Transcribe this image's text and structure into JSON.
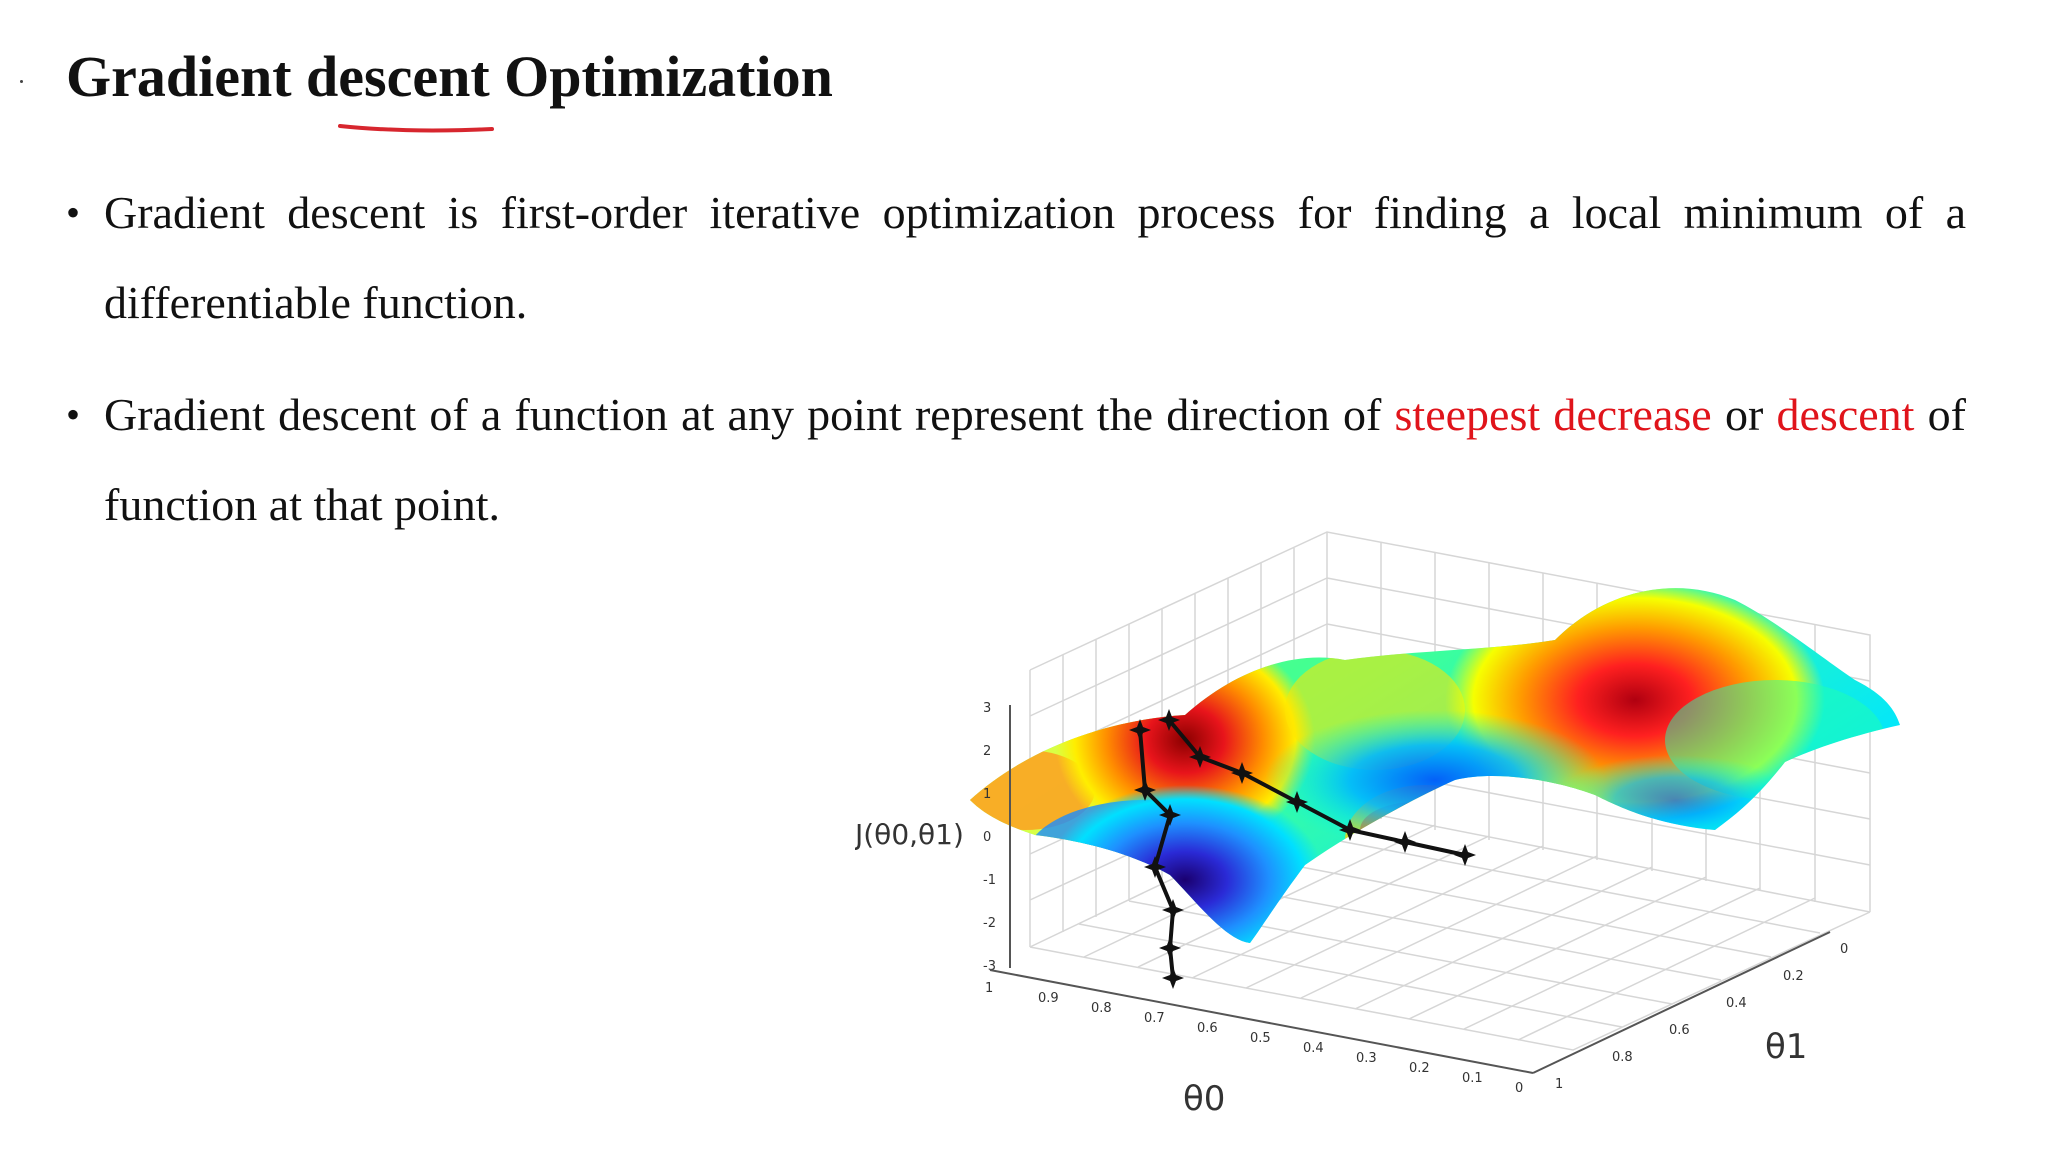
{
  "slide": {
    "title": "Gradient descent Optimization",
    "bullets": [
      {
        "parts": [
          {
            "text": "Gradient descent is first-order iterative optimization process for  finding a local minimum of a differentiable function.",
            "highlight": false
          }
        ]
      },
      {
        "parts": [
          {
            "text": "Gradient descent of a function at any point represent the direction of ",
            "highlight": false
          },
          {
            "text": "steepest decrease",
            "highlight": true
          },
          {
            "text": " or ",
            "highlight": false
          },
          {
            "text": "descent",
            "highlight": true
          },
          {
            "text": " of function at that point.",
            "highlight": false
          }
        ]
      }
    ],
    "bullet_symbol": "•",
    "colors": {
      "text": "#111111",
      "highlight": "#e0141b",
      "ink_underline": "#d7262e",
      "path": "#111111"
    }
  },
  "figure": {
    "z_axis_label": "J(θ0,θ1)",
    "z_ticks": [
      "3",
      "2",
      "1",
      "0",
      "-1",
      "-2",
      "-3"
    ],
    "theta0_label": "θ0",
    "theta0_ticks": [
      "1",
      "0.9",
      "0.8",
      "0.7",
      "0.6",
      "0.5",
      "0.4",
      "0.3",
      "0.2",
      "0.1",
      "0"
    ],
    "theta1_label": "θ1",
    "theta1_ticks": [
      "1",
      "0.8",
      "0.6",
      "0.4",
      "0.2",
      "0"
    ],
    "surface_colormap": "jet",
    "paths_marker": "star"
  }
}
